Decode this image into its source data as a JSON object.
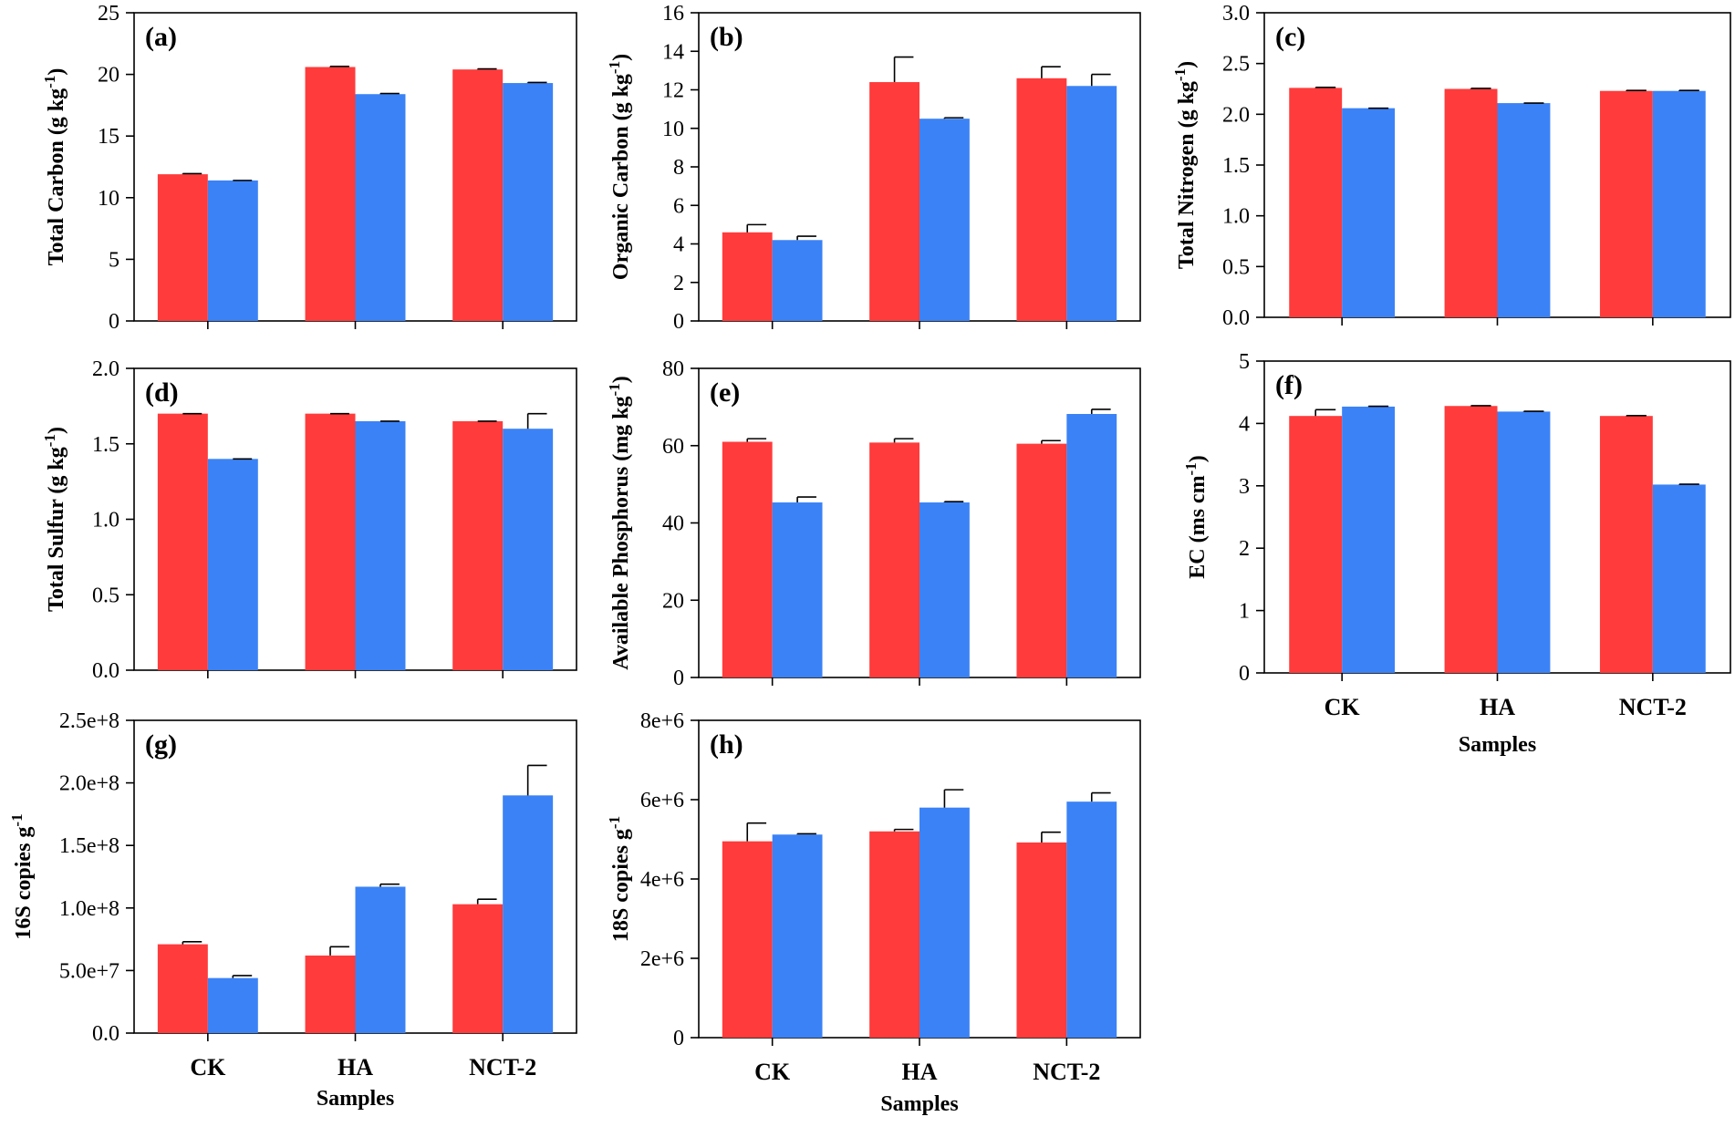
{
  "figure": {
    "series_colors": [
      "#ff3b3b",
      "#3b82f6"
    ],
    "xlabel": "Samples"
  },
  "chart_data": [
    {
      "type": "bar",
      "panel": "(a)",
      "categories": [
        "CK",
        "HA",
        "NCT-2"
      ],
      "ylabel": "Total Carbon (g kg",
      "ylabel_sup": "-1",
      "ylabel_end": ")",
      "xlabel": "",
      "ylim": [
        0,
        25
      ],
      "yticks": [
        "0",
        "5",
        "10",
        "15",
        "20",
        "25"
      ],
      "yticks_v": [
        0,
        5,
        10,
        15,
        20,
        25
      ],
      "show_categories": false,
      "series": [
        {
          "values": [
            11.9,
            20.6,
            20.4
          ],
          "errors": [
            0.05,
            0.05,
            0.05
          ]
        },
        {
          "values": [
            11.4,
            18.4,
            19.3
          ],
          "errors": [
            0,
            0.05,
            0.05
          ]
        }
      ]
    },
    {
      "type": "bar",
      "panel": "(b)",
      "categories": [
        "CK",
        "HA",
        "NCT-2"
      ],
      "ylabel": "Organic Carbon (g kg",
      "ylabel_sup": "-1",
      "ylabel_end": ")",
      "xlabel": "",
      "ylim": [
        0,
        16
      ],
      "yticks": [
        "0",
        "2",
        "4",
        "6",
        "8",
        "10",
        "12",
        "14",
        "16"
      ],
      "yticks_v": [
        0,
        2,
        4,
        6,
        8,
        10,
        12,
        14,
        16
      ],
      "show_categories": false,
      "series": [
        {
          "values": [
            4.6,
            12.4,
            12.6
          ],
          "errors": [
            0.4,
            1.3,
            0.6
          ]
        },
        {
          "values": [
            4.2,
            10.5,
            12.2
          ],
          "errors": [
            0.2,
            0.05,
            0.6
          ]
        }
      ]
    },
    {
      "type": "bar",
      "panel": "(c)",
      "categories": [
        "CK",
        "HA",
        "NCT-2"
      ],
      "ylabel": "Total Nitrogen (g kg",
      "ylabel_sup": "-1",
      "ylabel_end": ")",
      "xlabel": "",
      "ylim": [
        0,
        3
      ],
      "yticks": [
        "0.0",
        "0.5",
        "1.0",
        "1.5",
        "2.0",
        "2.5",
        "3.0"
      ],
      "yticks_v": [
        0,
        0.5,
        1.0,
        1.5,
        2.0,
        2.5,
        3.0
      ],
      "show_categories": false,
      "series": [
        {
          "values": [
            2.26,
            2.25,
            2.23
          ],
          "errors": [
            0.005,
            0.005,
            0.005
          ]
        },
        {
          "values": [
            2.06,
            2.11,
            2.23
          ],
          "errors": [
            0,
            0,
            0.005
          ]
        }
      ]
    },
    {
      "type": "bar",
      "panel": "(d)",
      "categories": [
        "CK",
        "HA",
        "NCT-2"
      ],
      "ylabel": "Total Sulfur (g kg",
      "ylabel_sup": "-1",
      "ylabel_end": ")",
      "xlabel": "",
      "ylim": [
        0,
        2
      ],
      "yticks": [
        "0.0",
        "0.5",
        "1.0",
        "1.5",
        "2.0"
      ],
      "yticks_v": [
        0,
        0.5,
        1.0,
        1.5,
        2.0
      ],
      "show_categories": false,
      "series": [
        {
          "values": [
            1.7,
            1.7,
            1.65
          ],
          "errors": [
            0,
            0,
            0
          ]
        },
        {
          "values": [
            1.4,
            1.65,
            1.6
          ],
          "errors": [
            0,
            0,
            0.1
          ]
        }
      ]
    },
    {
      "type": "bar",
      "panel": "(e)",
      "categories": [
        "CK",
        "HA",
        "NCT-2"
      ],
      "ylabel": "Available Phosphorus (mg kg",
      "ylabel_sup": "-1",
      "ylabel_end": ")",
      "xlabel": "",
      "ylim": [
        0,
        80
      ],
      "yticks": [
        "0",
        "20",
        "40",
        "60",
        "80"
      ],
      "yticks_v": [
        0,
        20,
        40,
        60,
        80
      ],
      "show_categories": false,
      "series": [
        {
          "values": [
            61,
            60.8,
            60.5
          ],
          "errors": [
            0.8,
            1.0,
            0.8
          ]
        },
        {
          "values": [
            45.3,
            45.3,
            68.2
          ],
          "errors": [
            1.4,
            0.2,
            1.2
          ]
        }
      ]
    },
    {
      "type": "bar",
      "panel": "(f)",
      "categories": [
        "CK",
        "HA",
        "NCT-2"
      ],
      "ylabel": "EC (ms cm",
      "ylabel_sup": "-1",
      "ylabel_end": ")",
      "xlabel": "Samples",
      "ylim": [
        0,
        5
      ],
      "yticks": [
        "0",
        "1",
        "2",
        "3",
        "4",
        "5"
      ],
      "yticks_v": [
        0,
        1,
        2,
        3,
        4,
        5
      ],
      "show_categories": true,
      "series": [
        {
          "values": [
            4.12,
            4.28,
            4.12
          ],
          "errors": [
            0.1,
            0.005,
            0.005
          ]
        },
        {
          "values": [
            4.27,
            4.19,
            3.02
          ],
          "errors": [
            0.005,
            0.005,
            0.005
          ]
        }
      ]
    },
    {
      "type": "bar",
      "panel": "(g)",
      "categories": [
        "CK",
        "HA",
        "NCT-2"
      ],
      "ylabel": "16S copies g",
      "ylabel_sup": "-1",
      "ylabel_end": "",
      "xlabel": "Samples",
      "ylim": [
        0,
        250000000
      ],
      "yticks": [
        "0.0",
        "5.0e+7",
        "1.0e+8",
        "1.5e+8",
        "2.0e+8",
        "2.5e+8"
      ],
      "yticks_v": [
        0,
        50000000,
        100000000,
        150000000,
        200000000,
        250000000
      ],
      "show_categories": true,
      "series": [
        {
          "values": [
            71000000,
            62000000,
            103000000
          ],
          "errors": [
            2000000,
            7000000,
            4000000
          ]
        },
        {
          "values": [
            44000000,
            117000000,
            190000000
          ],
          "errors": [
            2000000,
            2000000,
            24000000
          ]
        }
      ]
    },
    {
      "type": "bar",
      "panel": "(h)",
      "categories": [
        "CK",
        "HA",
        "NCT-2"
      ],
      "ylabel": "18S copies g",
      "ylabel_sup": "-1",
      "ylabel_end": "",
      "xlabel": "Samples",
      "ylim": [
        0,
        8000000
      ],
      "yticks": [
        "0",
        "2e+6",
        "4e+6",
        "6e+6",
        "8e+6"
      ],
      "yticks_v": [
        0,
        2000000,
        4000000,
        6000000,
        8000000
      ],
      "show_categories": true,
      "series": [
        {
          "values": [
            4950000,
            5200000,
            4920000
          ],
          "errors": [
            460000,
            50000,
            260000
          ]
        },
        {
          "values": [
            5120000,
            5800000,
            5950000
          ],
          "errors": [
            20000,
            450000,
            220000
          ]
        }
      ]
    }
  ]
}
